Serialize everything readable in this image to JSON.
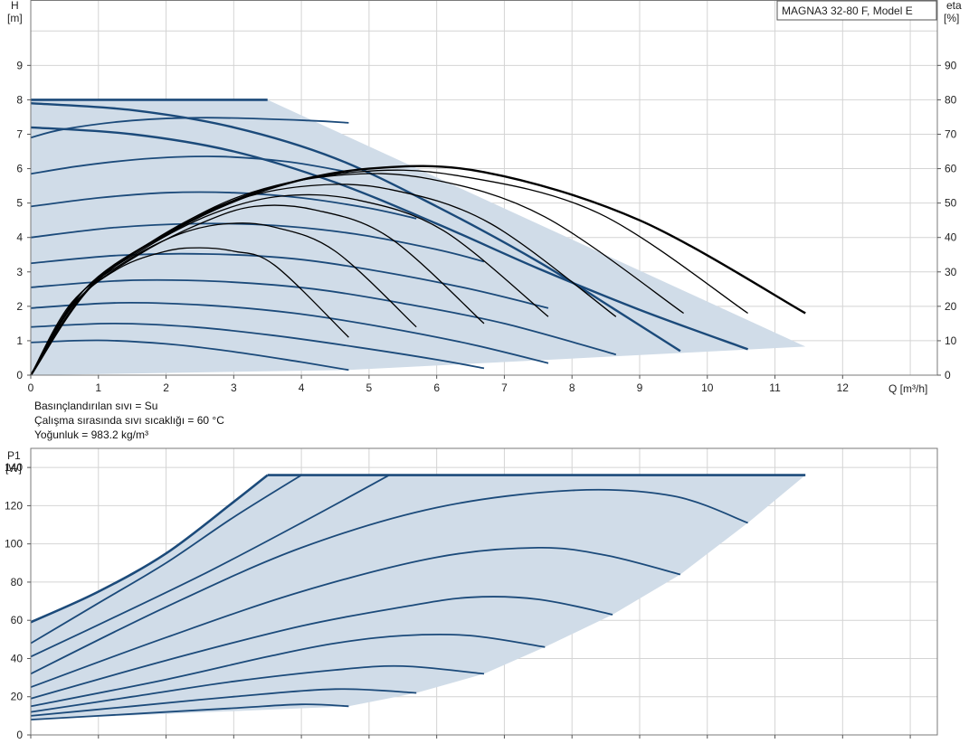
{
  "notes": {
    "fluid": "Basınçlandırılan sıvı = Su",
    "temperature": "Çalışma sırasında sıvı sıcaklığı = 60 °C",
    "density": "Yoğunluk = 983.2 kg/m³"
  },
  "colors": {
    "area_fill": "#d0dce8",
    "curve": "#1b4a7a",
    "efficiency": "#000000",
    "grid": "#d4d4d4",
    "frame": "#7a7a7a"
  },
  "chart_data": [
    {
      "type": "line",
      "title": "MAGNA3 32-80 F, Model E",
      "xlabel": "Q [m³/h]",
      "ylabel_top": "H",
      "ylabel_unit": "[m]",
      "y2label_top": "eta",
      "y2label_unit": "[%]",
      "xlim": [
        0,
        13.4
      ],
      "ylim": [
        0,
        10.9
      ],
      "y2lim": [
        0,
        109
      ],
      "xticks": [
        "0",
        "1",
        "2",
        "3",
        "4",
        "5",
        "6",
        "7",
        "8",
        "9",
        "10",
        "11",
        "12"
      ],
      "yticks": [
        "0",
        "1",
        "2",
        "3",
        "4",
        "5",
        "6",
        "7",
        "8",
        "9"
      ],
      "y2ticks": [
        "0",
        "10",
        "20",
        "30",
        "40",
        "50",
        "60",
        "70",
        "80",
        "90"
      ],
      "grid": true,
      "envelope": {
        "x": [
          0,
          3.5,
          11.45,
          4.7,
          0
        ],
        "y": [
          8,
          8,
          0.83,
          0.15,
          0
        ]
      },
      "head_curves": [
        {
          "x": [
            0,
            0.5,
            1.5,
            2.6,
            4.1,
            4.7
          ],
          "y": [
            6.9,
            7.15,
            7.4,
            7.48,
            7.4,
            7.33
          ]
        },
        {
          "x": [
            0,
            0.8,
            1.8,
            2.8,
            3.8,
            4.7
          ],
          "y": [
            5.85,
            6.1,
            6.3,
            6.35,
            6.2,
            5.9
          ]
        },
        {
          "x": [
            0,
            1.0,
            2.0,
            3.0,
            4.0,
            5.0,
            5.7
          ],
          "y": [
            4.9,
            5.15,
            5.3,
            5.3,
            5.15,
            4.85,
            4.55
          ]
        },
        {
          "x": [
            0,
            1.2,
            2.4,
            3.6,
            4.8,
            6.0,
            6.7
          ],
          "y": [
            4.0,
            4.28,
            4.4,
            4.35,
            4.1,
            3.65,
            3.3
          ]
        },
        {
          "x": [
            0,
            1.3,
            2.6,
            3.9,
            5.2,
            6.5,
            7.65
          ],
          "y": [
            3.25,
            3.48,
            3.52,
            3.38,
            3.0,
            2.5,
            1.95
          ]
        },
        {
          "x": [
            0,
            1.4,
            2.8,
            4.2,
            5.6,
            7.0,
            8.65
          ],
          "y": [
            2.55,
            2.75,
            2.72,
            2.5,
            2.05,
            1.5,
            0.6
          ]
        },
        {
          "x": [
            0,
            1.3,
            2.6,
            3.9,
            5.2,
            6.5,
            7.65
          ],
          "y": [
            1.95,
            2.1,
            2.03,
            1.8,
            1.4,
            0.9,
            0.35
          ]
        },
        {
          "x": [
            0,
            1.2,
            2.4,
            3.6,
            4.8,
            6.0,
            6.7
          ],
          "y": [
            1.4,
            1.5,
            1.4,
            1.15,
            0.82,
            0.45,
            0.2
          ]
        },
        {
          "x": [
            0,
            1.0,
            2.0,
            3.0,
            4.0,
            4.7
          ],
          "y": [
            0.95,
            1.01,
            0.91,
            0.68,
            0.38,
            0.15
          ]
        },
        {
          "x": [
            0,
            1.5,
            3.0,
            4.5,
            6.0,
            7.5,
            9.0,
            10.6
          ],
          "y": [
            7.2,
            7.0,
            6.5,
            5.6,
            4.4,
            3.1,
            1.9,
            0.75
          ]
        },
        {
          "x": [
            0,
            1.5,
            3.0,
            4.5,
            6.0,
            7.5,
            8.6,
            9.6
          ],
          "y": [
            7.9,
            7.7,
            7.2,
            6.3,
            4.9,
            3.3,
            1.95,
            0.7
          ]
        }
      ],
      "efficiency_curves": [
        {
          "x": [
            0,
            0.6,
            1.3,
            2.0,
            2.5,
            3.0,
            3.6,
            4.7
          ],
          "y": [
            0,
            20,
            31,
            36,
            37,
            36,
            32,
            11
          ]
        },
        {
          "x": [
            0,
            0.6,
            1.4,
            2.2,
            2.9,
            3.6,
            4.5,
            5.7
          ],
          "y": [
            0,
            21,
            33,
            41,
            44,
            43,
            36,
            14
          ]
        },
        {
          "x": [
            0,
            0.7,
            1.6,
            2.5,
            3.3,
            4.2,
            5.3,
            6.7
          ],
          "y": [
            0,
            22,
            35,
            44,
            49,
            48,
            40,
            15
          ]
        },
        {
          "x": [
            0,
            0.7,
            1.7,
            2.7,
            3.7,
            4.8,
            6.1,
            7.65
          ],
          "y": [
            0,
            23,
            37,
            47,
            52,
            51,
            42,
            17
          ]
        },
        {
          "x": [
            0,
            0.8,
            1.8,
            2.9,
            4.1,
            5.3,
            6.8,
            8.65
          ],
          "y": [
            0,
            24,
            39,
            50,
            55,
            54,
            44,
            17
          ]
        },
        {
          "x": [
            0,
            0.8,
            1.9,
            3.1,
            4.5,
            5.9,
            7.6,
            9.65
          ],
          "y": [
            0,
            25,
            40,
            52,
            58,
            57,
            46,
            18
          ]
        },
        {
          "x": [
            0,
            0.8,
            2.0,
            3.3,
            4.8,
            6.3,
            8.4,
            10.6
          ],
          "y": [
            0,
            25,
            41,
            53,
            59,
            58,
            47,
            18
          ]
        },
        {
          "x": [
            0,
            0.9,
            2.1,
            3.5,
            5.0,
            6.7,
            9.0,
            11.45
          ],
          "y": [
            0,
            26,
            42,
            54,
            60,
            59,
            45,
            18
          ]
        }
      ]
    },
    {
      "type": "line",
      "ylabel_top": "P1",
      "ylabel_unit": "[W]",
      "xlim": [
        0,
        13.4
      ],
      "ylim": [
        0,
        150
      ],
      "yticks": [
        "0",
        "20",
        "40",
        "60",
        "80",
        "100",
        "120",
        "140"
      ],
      "grid": true,
      "envelope": {
        "x": [
          0,
          1.0,
          2.0,
          3.0,
          3.5,
          11.45,
          10.6,
          9.6,
          8.6,
          7.6,
          6.7,
          5.7,
          4.7,
          0
        ],
        "y": [
          59,
          75,
          95,
          122,
          136,
          136,
          111,
          84,
          63,
          46,
          32,
          22,
          15,
          8
        ]
      },
      "power_curves": [
        {
          "x": [
            0,
            1.0,
            2.0,
            3.0,
            3.5
          ],
          "y": [
            59,
            75,
            95,
            122,
            136
          ]
        },
        {
          "x": [
            0,
            1.0,
            2.0,
            3.0,
            4.0
          ],
          "y": [
            48,
            69,
            90,
            114,
            136
          ]
        },
        {
          "x": [
            0,
            1.2,
            2.6,
            4.0,
            5.3
          ],
          "y": [
            41,
            61,
            85,
            111,
            136
          ]
        },
        {
          "x": [
            0,
            2.0,
            4.0,
            6.0,
            8.0,
            9.5,
            10.6
          ],
          "y": [
            32,
            67,
            98,
            119,
            128,
            125,
            111
          ]
        },
        {
          "x": [
            0,
            2.0,
            4.0,
            6.0,
            7.5,
            8.5,
            9.6
          ],
          "y": [
            25,
            51,
            75,
            93,
            98,
            94,
            84
          ]
        },
        {
          "x": [
            0,
            2.0,
            4.0,
            5.5,
            6.5,
            7.5,
            8.6
          ],
          "y": [
            19,
            39,
            57,
            67,
            72,
            71,
            63
          ]
        },
        {
          "x": [
            0,
            2.0,
            3.5,
            4.5,
            5.5,
            6.5,
            7.6
          ],
          "y": [
            15,
            29,
            41,
            48,
            52,
            52,
            46
          ]
        },
        {
          "x": [
            0,
            1.5,
            3.0,
            4.5,
            5.5,
            6.7
          ],
          "y": [
            12,
            20,
            28,
            34,
            36,
            32
          ]
        },
        {
          "x": [
            0,
            1.5,
            3.0,
            4.5,
            5.7
          ],
          "y": [
            10,
            15,
            20,
            24,
            22
          ]
        },
        {
          "x": [
            0,
            1.5,
            3.0,
            4.0,
            4.7
          ],
          "y": [
            8,
            11,
            14,
            16,
            15
          ]
        }
      ]
    }
  ]
}
